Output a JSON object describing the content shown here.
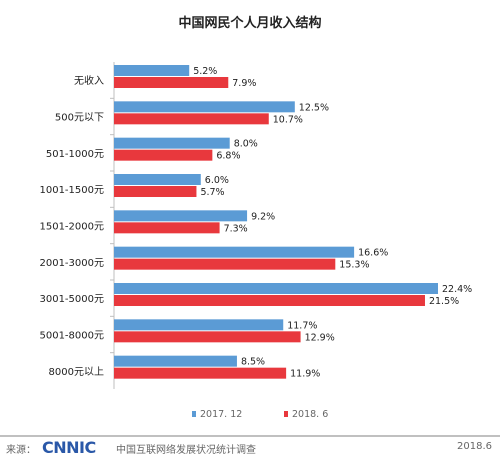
{
  "chart_data": {
    "type": "bar",
    "orientation": "horizontal",
    "title": "中国网民个人月收入结构",
    "categories": [
      "无收入",
      "500元以下",
      "501-1000元",
      "1001-1500元",
      "1501-2000元",
      "2001-3000元",
      "3001-5000元",
      "5001-8000元",
      "8000元以上"
    ],
    "series": [
      {
        "name": "2017. 12",
        "color": "#5b9bd5",
        "values": [
          5.2,
          12.5,
          8.0,
          6.0,
          9.2,
          16.6,
          22.4,
          11.7,
          8.5
        ],
        "labels": [
          "5.2%",
          "12.5%",
          "8.0%",
          "6.0%",
          "9.2%",
          "16.6%",
          "22.4%",
          "11.7%",
          "8.5%"
        ]
      },
      {
        "name": "2018. 6",
        "color": "#e8383d",
        "values": [
          7.9,
          10.7,
          6.8,
          5.7,
          7.3,
          15.3,
          21.5,
          12.9,
          11.9
        ],
        "labels": [
          "7.9%",
          "10.7%",
          "6.8%",
          "5.7%",
          "7.3%",
          "15.3%",
          "21.5%",
          "12.9%",
          "11.9%"
        ]
      }
    ],
    "xlim": [
      0,
      22.4
    ],
    "legend_position": "bottom",
    "grid": false
  },
  "footer": {
    "source_label": "来源：",
    "logo_text": "CNNIC",
    "org": "中国互联网络发展状况统计调查",
    "date": "2018.6"
  }
}
